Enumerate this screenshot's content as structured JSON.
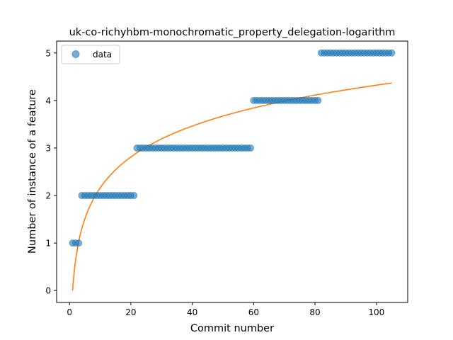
{
  "chart_data": {
    "type": "scatter",
    "title": "uk-co-richyhbm-monochromatic_property_delegation-logarithm",
    "xlabel": "Commit number",
    "ylabel": "Number of instance of a feature",
    "xlim": [
      -4.2,
      110.2
    ],
    "ylim": [
      -0.25,
      5.25
    ],
    "xticks": [
      0,
      20,
      40,
      60,
      80,
      100
    ],
    "yticks": [
      0,
      1,
      2,
      3,
      4,
      5
    ],
    "legend": {
      "position": "top-left",
      "entries": [
        {
          "label": "data",
          "series": "data"
        }
      ]
    },
    "grid": false,
    "series": [
      {
        "name": "data",
        "kind": "scatter",
        "color": "#1f77b4",
        "x_start": 1,
        "x_step": 1,
        "segments": [
          {
            "x_from": 1,
            "x_to": 3,
            "y": 1
          },
          {
            "x_from": 4,
            "x_to": 21,
            "y": 2
          },
          {
            "x_from": 22,
            "x_to": 59,
            "y": 3
          },
          {
            "x_from": 60,
            "x_to": 81,
            "y": 4
          },
          {
            "x_from": 82,
            "x_to": 105,
            "y": 5
          }
        ]
      },
      {
        "kind": "line",
        "color": "#ff7f0e",
        "fit": "logarithmic",
        "equation": {
          "a": 0.9385,
          "b": 0.0
        },
        "x_range": [
          1,
          105
        ]
      }
    ]
  }
}
